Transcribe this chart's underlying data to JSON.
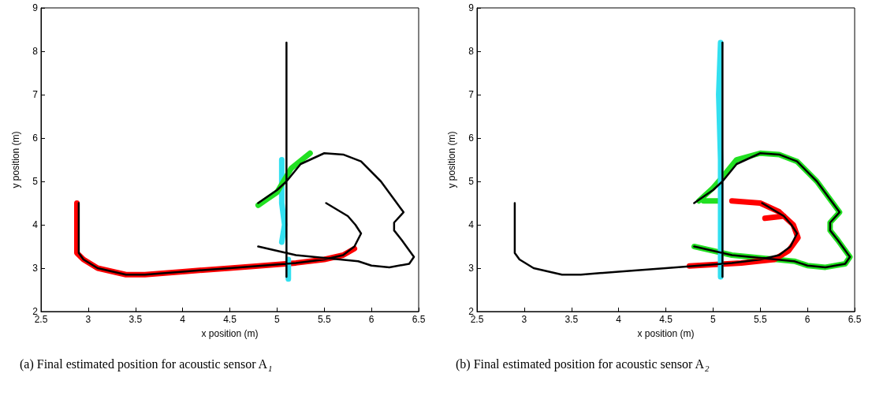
{
  "chart_data": [
    {
      "type": "line",
      "title": "(a) Final estimated position for acoustic sensor A$_{1}$",
      "xlabel": "x position (m)",
      "ylabel": "y position (m)",
      "xlim": [
        2.5,
        6.5
      ],
      "ylim": [
        2,
        9
      ],
      "xticks": [
        2.5,
        3,
        3.5,
        4,
        4.5,
        5,
        5.5,
        6,
        6.5
      ],
      "yticks": [
        2,
        3,
        4,
        5,
        6,
        7,
        8,
        9
      ],
      "grid": false,
      "series": [
        {
          "color": "#ff0000",
          "x": [
            2.88,
            2.88,
            2.95,
            3.1,
            3.4,
            3.6,
            4.0,
            4.5,
            4.8,
            5.2,
            5.5,
            5.7,
            5.82
          ],
          "values": [
            4.5,
            3.35,
            3.2,
            3.0,
            2.85,
            2.85,
            2.92,
            3.0,
            3.05,
            3.12,
            3.2,
            3.3,
            3.45
          ]
        },
        {
          "color": "#33e0f0",
          "x": [
            5.05,
            5.05,
            5.08,
            5.05,
            null,
            5.12,
            5.12
          ],
          "values": [
            5.5,
            4.5,
            4.0,
            3.6,
            null,
            3.2,
            2.75
          ]
        },
        {
          "color": "#22e022",
          "x": [
            4.8,
            5.0,
            5.15,
            5.35
          ],
          "values": [
            4.45,
            4.75,
            5.3,
            5.65
          ]
        },
        {
          "color": "#000000",
          "x": [
            2.9,
            2.9,
            2.95,
            3.1,
            3.4,
            3.6,
            4.0,
            4.5,
            4.8,
            5.2,
            5.5,
            5.7,
            5.82,
            5.89,
            5.83,
            5.75,
            5.52,
            null,
            5.1,
            5.1,
            null,
            4.8,
            5.0,
            5.1,
            5.25,
            5.5,
            5.7,
            5.89,
            6.1,
            6.34,
            6.24,
            6.24,
            6.32,
            6.45,
            6.4,
            6.19,
            6.0,
            5.86,
            5.2,
            4.8
          ],
          "values": [
            4.5,
            3.35,
            3.2,
            3.0,
            2.85,
            2.85,
            2.92,
            3.0,
            3.05,
            3.12,
            3.2,
            3.3,
            3.5,
            3.8,
            4.0,
            4.2,
            4.5,
            null,
            2.8,
            8.2,
            null,
            4.5,
            4.8,
            5.0,
            5.4,
            5.65,
            5.62,
            5.46,
            5.0,
            4.29,
            4.05,
            3.87,
            3.65,
            3.26,
            3.1,
            3.02,
            3.06,
            3.16,
            3.3,
            3.5
          ]
        }
      ]
    },
    {
      "type": "line",
      "title": "(b) Final estimated position for acoustic sensor A$_{2}$",
      "xlabel": "x position (m)",
      "ylabel": "y position (m)",
      "xlim": [
        2.5,
        6.5
      ],
      "ylim": [
        2,
        9
      ],
      "xticks": [
        2.5,
        3,
        3.5,
        4,
        4.5,
        5,
        5.5,
        6,
        6.5
      ],
      "yticks": [
        2,
        3,
        4,
        5,
        6,
        7,
        8,
        9
      ],
      "grid": false,
      "series": [
        {
          "color": "#22e022",
          "x": [
            4.85,
            5.0,
            5.1,
            5.25,
            5.5,
            5.7,
            5.89,
            6.1,
            6.34,
            6.24,
            6.24,
            6.32,
            6.45,
            6.4,
            6.19,
            6.0,
            5.86,
            5.2,
            4.8,
            null,
            4.9,
            5.05
          ],
          "values": [
            4.55,
            4.85,
            5.1,
            5.5,
            5.65,
            5.62,
            5.46,
            5.0,
            4.29,
            4.05,
            3.87,
            3.65,
            3.26,
            3.1,
            3.02,
            3.06,
            3.16,
            3.3,
            3.5,
            null,
            4.55,
            4.55
          ]
        },
        {
          "color": "#ff0000",
          "x": [
            4.75,
            5.0,
            5.3,
            5.65,
            5.8,
            5.9,
            5.85,
            5.7,
            5.5,
            5.2,
            null,
            5.55,
            5.75
          ],
          "values": [
            3.05,
            3.08,
            3.12,
            3.2,
            3.4,
            3.7,
            4.0,
            4.3,
            4.5,
            4.55,
            null,
            4.15,
            4.2
          ]
        },
        {
          "color": "#33e0f0",
          "x": [
            5.08,
            5.08,
            5.06,
            5.08
          ],
          "values": [
            2.8,
            5.5,
            7.0,
            8.2
          ]
        },
        {
          "color": "#000000",
          "x": [
            2.9,
            2.9,
            2.95,
            3.1,
            3.4,
            3.6,
            4.0,
            4.5,
            4.8,
            5.2,
            5.5,
            5.7,
            5.82,
            5.89,
            5.83,
            5.75,
            5.52,
            null,
            5.1,
            5.1,
            null,
            4.8,
            5.0,
            5.1,
            5.25,
            5.5,
            5.7,
            5.89,
            6.1,
            6.34,
            6.24,
            6.24,
            6.32,
            6.45,
            6.4,
            6.19,
            6.0,
            5.86,
            5.2,
            4.8
          ],
          "values": [
            4.5,
            3.35,
            3.2,
            3.0,
            2.85,
            2.85,
            2.92,
            3.0,
            3.05,
            3.12,
            3.2,
            3.3,
            3.5,
            3.8,
            4.0,
            4.2,
            4.5,
            null,
            2.8,
            8.2,
            null,
            4.5,
            4.8,
            5.0,
            5.4,
            5.65,
            5.62,
            5.46,
            5.0,
            4.29,
            4.05,
            3.87,
            3.65,
            3.26,
            3.1,
            3.02,
            3.06,
            3.16,
            3.3,
            3.5
          ]
        }
      ]
    }
  ]
}
